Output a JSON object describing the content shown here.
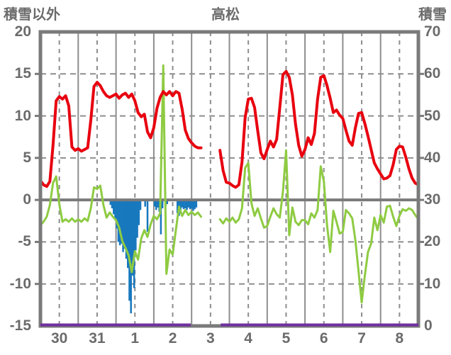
{
  "header": {
    "left_axis_title": "積雪以外",
    "title": "高松",
    "right_axis_title": "積雪"
  },
  "chart_data": {
    "type": "line",
    "title": "高松",
    "left_axis": {
      "title": "積雪以外",
      "min": -15,
      "max": 20,
      "ticks": [
        20,
        15,
        10,
        5,
        0,
        -5,
        -10,
        -15
      ],
      "dashed_gridlines": [
        15,
        10,
        5,
        -5,
        -10
      ],
      "zero_line": 0
    },
    "right_axis": {
      "title": "積雪",
      "min": 0,
      "max": 70,
      "ticks": [
        70,
        60,
        50,
        40,
        30,
        20,
        10,
        0
      ]
    },
    "x_axis": {
      "day_labels": [
        "30",
        "31",
        "1",
        "2",
        "3",
        "4",
        "5",
        "6",
        "7",
        "8"
      ],
      "days": 10,
      "hours_total": 240,
      "solid_gridlines_at_day_boundaries": true,
      "dashed_gridlines_at_midday": true
    },
    "grid": true,
    "legend": "none",
    "colors": {
      "red_line": "#e8000f",
      "green_line": "#8ecb42",
      "blue_bars": "#1878be",
      "purple_line": "#7030a0",
      "gridline": "#8e8e8e",
      "border": "#7a7a7a",
      "text": "#6b6b6b",
      "background": "#ffffff"
    },
    "series": [
      {
        "name": "red-line",
        "type": "line",
        "axis": "left",
        "color": "#e8000f",
        "stroke_width": 4,
        "step_hours": 2,
        "values": [
          2.3,
          1.8,
          1.6,
          2.2,
          6.5,
          11.8,
          12.3,
          12.0,
          12.4,
          11.2,
          6.3,
          5.9,
          6.1,
          5.8,
          6.0,
          6.2,
          9.5,
          13.5,
          14.0,
          13.6,
          12.9,
          12.4,
          12.2,
          12.4,
          12.6,
          12.1,
          12.5,
          12.7,
          12.2,
          12.6,
          11.8,
          10.4,
          9.9,
          10.2,
          8.1,
          7.4,
          8.6,
          10.9,
          12.2,
          12.9,
          12.5,
          12.9,
          12.4,
          12.9,
          12.7,
          10.8,
          8.3,
          7.3,
          6.8,
          6.4,
          6.2,
          6.2,
          null,
          null,
          null,
          null,
          null,
          5.9,
          3.5,
          2.1,
          2.0,
          1.7,
          1.5,
          1.8,
          4.5,
          9.8,
          12.0,
          12.1,
          11.0,
          8.2,
          5.6,
          4.9,
          6.0,
          7.0,
          6.3,
          7.2,
          11.0,
          14.9,
          15.3,
          14.6,
          12.5,
          9.0,
          6.5,
          5.2,
          6.0,
          7.4,
          6.6,
          7.9,
          12.0,
          14.6,
          14.8,
          13.6,
          12.1,
          10.4,
          10.7,
          10.1,
          9.7,
          8.3,
          7.0,
          6.5,
          8.6,
          10.3,
          10.4,
          9.1,
          7.6,
          6.0,
          4.4,
          3.7,
          3.1,
          2.5,
          2.6,
          2.9,
          4.2,
          6.0,
          6.4,
          6.3,
          5.1,
          3.7,
          2.6,
          2.0,
          1.8
        ]
      },
      {
        "name": "green-line",
        "type": "line",
        "axis": "left",
        "color": "#8ecb42",
        "stroke_width": 3,
        "step_hours": 2,
        "values": [
          -3.0,
          -2.6,
          -2.0,
          -0.6,
          2.0,
          2.8,
          -0.5,
          -2.6,
          -2.3,
          -2.6,
          -2.2,
          -2.6,
          -2.3,
          -2.6,
          -2.2,
          -2.5,
          -1.0,
          1.5,
          1.3,
          1.7,
          -0.6,
          -2.1,
          -1.5,
          -2.0,
          -2.4,
          -3.3,
          -4.9,
          -5.7,
          -6.6,
          -8.6,
          -6.1,
          -7.1,
          -4.6,
          -3.6,
          -4.4,
          -2.9,
          -1.9,
          -2.3,
          -1.6,
          16.0,
          -8.8,
          -5.9,
          -6.5,
          -3.6,
          -0.8,
          -1.9,
          -1.2,
          -1.8,
          -1.4,
          -1.8,
          -1.5,
          -2.0,
          null,
          null,
          null,
          null,
          null,
          -2.3,
          -2.8,
          -2.2,
          -2.6,
          -2.1,
          -2.7,
          -2.3,
          -1.0,
          3.8,
          4.4,
          -0.4,
          -1.9,
          -1.0,
          -2.2,
          -3.3,
          -3.1,
          -2.0,
          -1.0,
          -1.7,
          -2.1,
          1.0,
          5.9,
          -4.2,
          -0.9,
          -2.6,
          -3.0,
          -2.4,
          -2.4,
          -2.9,
          -1.6,
          -2.1,
          -1.2,
          4.0,
          2.2,
          -3.0,
          -6.2,
          -1.3,
          -2.6,
          -4.0,
          -3.8,
          -1.2,
          -1.6,
          -2.2,
          -4.8,
          -8.5,
          -12.2,
          -9.0,
          -6.2,
          -5.2,
          -2.1,
          -3.6,
          -1.8,
          -2.7,
          -0.8,
          -0.7,
          -2.0,
          -3.1,
          -1.9,
          -1.1,
          -1.3,
          -1.0,
          -1.2,
          -1.8,
          -2.3
        ]
      },
      {
        "name": "blue-bars",
        "type": "bar",
        "axis": "left",
        "color": "#1878be",
        "bar_hours": 1,
        "points": [
          [
            44.5,
            -0.6
          ],
          [
            45.5,
            -1.0
          ],
          [
            46.5,
            -1.7
          ],
          [
            47.5,
            -2.4
          ],
          [
            48.5,
            -3.4
          ],
          [
            49.5,
            -5.0
          ],
          [
            50.5,
            -5.4
          ],
          [
            51.5,
            -5.2
          ],
          [
            52.5,
            -6.2
          ],
          [
            53.5,
            -5.8
          ],
          [
            54.5,
            -7.0
          ],
          [
            55.5,
            -8.1
          ],
          [
            56.5,
            -12.0
          ],
          [
            57.5,
            -13.5
          ],
          [
            58.5,
            -9.0
          ],
          [
            59.5,
            -10.5
          ],
          [
            60.5,
            -6.0
          ],
          [
            61.5,
            -4.5
          ],
          [
            62.5,
            -3.0
          ],
          [
            63.5,
            -1.2
          ],
          [
            66.5,
            -0.8
          ],
          [
            68.0,
            -3.8
          ],
          [
            72.5,
            -0.8
          ],
          [
            73.5,
            -1.2
          ],
          [
            74.5,
            -0.9
          ],
          [
            75.5,
            -1.4
          ],
          [
            76.5,
            -4.1
          ],
          [
            77.5,
            -1.0
          ],
          [
            79.5,
            -0.7
          ],
          [
            80.5,
            -0.5
          ],
          [
            87.0,
            -1.6
          ],
          [
            88.0,
            -1.9
          ],
          [
            89.0,
            -1.2
          ],
          [
            90.0,
            -0.9
          ],
          [
            91.0,
            -1.1
          ],
          [
            92.0,
            -1.0
          ],
          [
            93.0,
            -1.2
          ],
          [
            94.0,
            -0.9
          ],
          [
            95.0,
            -1.1
          ],
          [
            96.0,
            -1.0
          ],
          [
            97.0,
            -1.3
          ],
          [
            98.0,
            -1.1
          ],
          [
            99.0,
            -0.9
          ]
        ]
      },
      {
        "name": "purple-line",
        "type": "line",
        "axis": "right",
        "color": "#7030a0",
        "stroke_width": 4,
        "segments": [
          [
            0,
            95.5,
            0
          ],
          [
            114.5,
            240,
            0
          ]
        ]
      }
    ],
    "data_gap_hours": [
      102,
      114
    ]
  }
}
